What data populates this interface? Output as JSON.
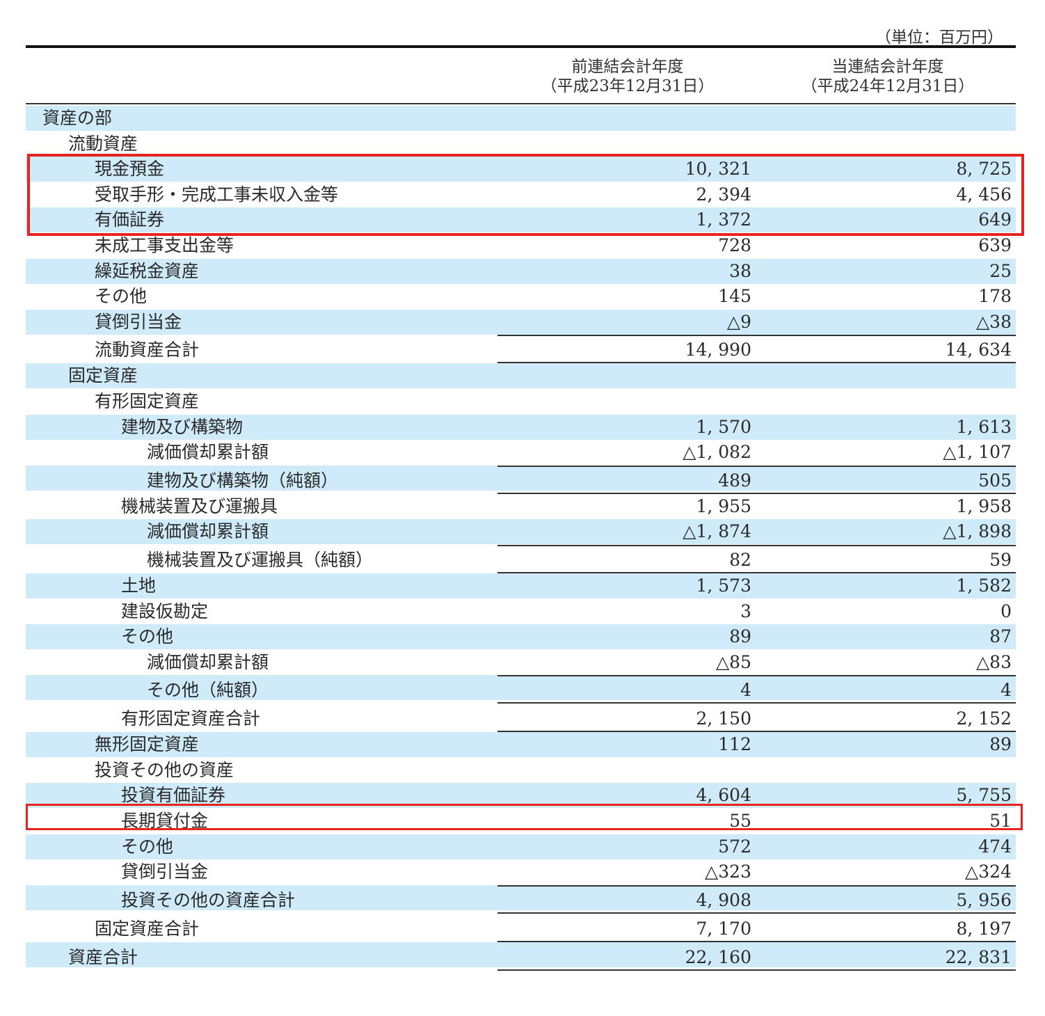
{
  "unit": "（単位：百万円）",
  "columns": [
    {
      "line1": "前連結会計年度",
      "line2": "（平成23年12月31日）"
    },
    {
      "line1": "当連結会計年度",
      "line2": "（平成24年12月31日）"
    }
  ],
  "rows": [
    {
      "label": "資産の部",
      "indent": 0,
      "shade": true,
      "v1": "",
      "v2": ""
    },
    {
      "label": "流動資産",
      "indent": 1,
      "shade": false,
      "v1": "",
      "v2": ""
    },
    {
      "label": "現金預金",
      "indent": 2,
      "shade": true,
      "v1": "10, 321",
      "v2": "8, 725"
    },
    {
      "label": "受取手形・完成工事未収入金等",
      "indent": 2,
      "shade": false,
      "v1": "2, 394",
      "v2": "4, 456"
    },
    {
      "label": "有価証券",
      "indent": 2,
      "shade": true,
      "v1": "1, 372",
      "v2": "649"
    },
    {
      "label": "未成工事支出金等",
      "indent": 2,
      "shade": false,
      "v1": "728",
      "v2": "639"
    },
    {
      "label": "繰延税金資産",
      "indent": 2,
      "shade": true,
      "v1": "38",
      "v2": "25"
    },
    {
      "label": "その他",
      "indent": 2,
      "shade": false,
      "v1": "145",
      "v2": "178"
    },
    {
      "label": "貸倒引当金",
      "indent": 2,
      "shade": true,
      "v1": "△9",
      "v2": "△38"
    },
    {
      "label": "流動資産合計",
      "indent": 2,
      "shade": false,
      "v1": "14, 990",
      "v2": "14, 634",
      "tall": true,
      "top": true,
      "bottom": true
    },
    {
      "label": "固定資産",
      "indent": 1,
      "shade": true,
      "v1": "",
      "v2": ""
    },
    {
      "label": "有形固定資産",
      "indent": 2,
      "shade": false,
      "v1": "",
      "v2": ""
    },
    {
      "label": "建物及び構築物",
      "indent": 3,
      "shade": true,
      "v1": "1, 570",
      "v2": "1, 613"
    },
    {
      "label": "減価償却累計額",
      "indent": 4,
      "shade": false,
      "v1": "△1, 082",
      "v2": "△1, 107"
    },
    {
      "label": "建物及び構築物（純額）",
      "indent": 4,
      "shade": true,
      "v1": "489",
      "v2": "505",
      "tall": true,
      "top": true,
      "bottom": true
    },
    {
      "label": "機械装置及び運搬具",
      "indent": 3,
      "shade": false,
      "v1": "1, 955",
      "v2": "1, 958"
    },
    {
      "label": "減価償却累計額",
      "indent": 4,
      "shade": true,
      "v1": "△1, 874",
      "v2": "△1, 898"
    },
    {
      "label": "機械装置及び運搬具（純額）",
      "indent": 4,
      "shade": false,
      "v1": "82",
      "v2": "59",
      "tall": true,
      "top": true,
      "bottom": true
    },
    {
      "label": "土地",
      "indent": 3,
      "shade": true,
      "v1": "1, 573",
      "v2": "1, 582"
    },
    {
      "label": "建設仮勘定",
      "indent": 3,
      "shade": false,
      "v1": "3",
      "v2": "0"
    },
    {
      "label": "その他",
      "indent": 3,
      "shade": true,
      "v1": "89",
      "v2": "87"
    },
    {
      "label": "減価償却累計額",
      "indent": 4,
      "shade": false,
      "v1": "△85",
      "v2": "△83"
    },
    {
      "label": "その他（純額）",
      "indent": 4,
      "shade": true,
      "v1": "4",
      "v2": "4",
      "tall": true,
      "top": true,
      "bottom": true
    },
    {
      "label": "有形固定資産合計",
      "indent": 3,
      "shade": false,
      "v1": "2, 150",
      "v2": "2, 152",
      "tall": true,
      "bottom": true
    },
    {
      "label": "無形固定資産",
      "indent": 2,
      "shade": true,
      "v1": "112",
      "v2": "89"
    },
    {
      "label": "投資その他の資産",
      "indent": 2,
      "shade": false,
      "v1": "",
      "v2": ""
    },
    {
      "label": "投資有価証券",
      "indent": 3,
      "shade": true,
      "v1": "4, 604",
      "v2": "5, 755"
    },
    {
      "label": "長期貸付金",
      "indent": 3,
      "shade": false,
      "v1": "55",
      "v2": "51"
    },
    {
      "label": "その他",
      "indent": 3,
      "shade": true,
      "v1": "572",
      "v2": "474"
    },
    {
      "label": "貸倒引当金",
      "indent": 3,
      "shade": false,
      "v1": "△323",
      "v2": "△324"
    },
    {
      "label": "投資その他の資産合計",
      "indent": 3,
      "shade": true,
      "v1": "4, 908",
      "v2": "5, 956",
      "tall": true,
      "top": true,
      "bottom": true
    },
    {
      "label": "固定資産合計",
      "indent": 2,
      "shade": false,
      "v1": "7, 170",
      "v2": "8, 197",
      "tall": true,
      "bottom": true
    },
    {
      "label": "資産合計",
      "indent": 1,
      "shade": true,
      "v1": "22, 160",
      "v2": "22, 831",
      "tall": true,
      "bottom": true
    }
  ],
  "highlight_color": "#e8221d",
  "row_shade_color": "#cfeaf9"
}
